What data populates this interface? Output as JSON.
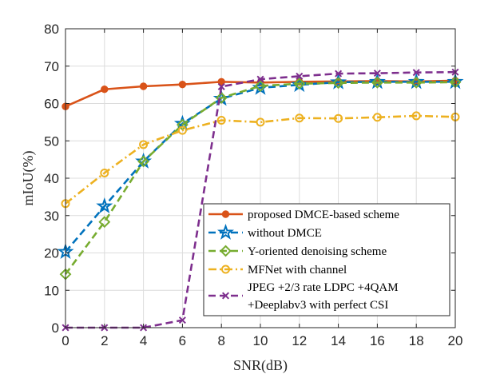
{
  "chart_data": {
    "type": "line",
    "title": "",
    "xlabel": "SNR(dB)",
    "ylabel": "mIoU(%)",
    "xlim": [
      0,
      20
    ],
    "ylim": [
      0,
      80
    ],
    "xticks": [
      0,
      2,
      4,
      6,
      8,
      10,
      12,
      14,
      16,
      18,
      20
    ],
    "yticks": [
      0,
      10,
      20,
      30,
      40,
      50,
      60,
      70,
      80
    ],
    "grid": true,
    "legend_position": "bottom-right",
    "series": [
      {
        "name": "proposed DMCE-based scheme",
        "legend_lines": [
          "proposed DMCE-based scheme"
        ],
        "color": "#d95319",
        "line_style": "solid",
        "marker": "circle-filled",
        "x": [
          0,
          2,
          4,
          6,
          8,
          10,
          12,
          14,
          16,
          18,
          20
        ],
        "y": [
          59.2,
          63.8,
          64.6,
          65.1,
          65.8,
          65.6,
          65.8,
          65.9,
          66.0,
          65.9,
          66.1
        ]
      },
      {
        "name": "without DMCE",
        "legend_lines": [
          "without DMCE"
        ],
        "color": "#0072bd",
        "line_style": "dashed",
        "marker": "star",
        "x": [
          0,
          2,
          4,
          6,
          8,
          10,
          12,
          14,
          16,
          18,
          20
        ],
        "y": [
          20.3,
          32.5,
          44.5,
          54.6,
          61.3,
          64.2,
          65.0,
          65.7,
          65.8,
          65.8,
          65.8
        ]
      },
      {
        "name": "Y-oriented denoising scheme",
        "legend_lines": [
          "Y-oriented denoising scheme"
        ],
        "color": "#77ac30",
        "line_style": "dashed",
        "marker": "diamond",
        "x": [
          0,
          2,
          4,
          6,
          8,
          10,
          12,
          14,
          16,
          18,
          20
        ],
        "y": [
          14.3,
          28.3,
          44.5,
          54.3,
          61.5,
          64.7,
          65.3,
          65.5,
          65.6,
          65.6,
          65.7
        ]
      },
      {
        "name": "MFNet with channel",
        "legend_lines": [
          "MFNet with channel"
        ],
        "color": "#edb120",
        "line_style": "dashdot",
        "marker": "circle-open",
        "x": [
          0,
          2,
          4,
          6,
          8,
          10,
          12,
          14,
          16,
          18,
          20
        ],
        "y": [
          33.2,
          41.4,
          49.0,
          52.8,
          55.5,
          55.0,
          56.1,
          56.0,
          56.3,
          56.7,
          56.4
        ]
      },
      {
        "name": "JPEG +2/3 rate LDPC +4QAM +Deeplabv3 with perfect CSI",
        "legend_lines": [
          "JPEG +2/3 rate LDPC +4QAM",
          "+Deeplabv3 with perfect CSI"
        ],
        "color": "#7e2f8e",
        "line_style": "dashed",
        "marker": "x",
        "x": [
          0,
          2,
          4,
          6,
          8,
          10,
          12,
          14,
          16,
          18,
          20
        ],
        "y": [
          0.0,
          0.0,
          0.0,
          2.0,
          64.5,
          66.5,
          67.3,
          68.0,
          68.1,
          68.3,
          68.4
        ]
      }
    ]
  }
}
